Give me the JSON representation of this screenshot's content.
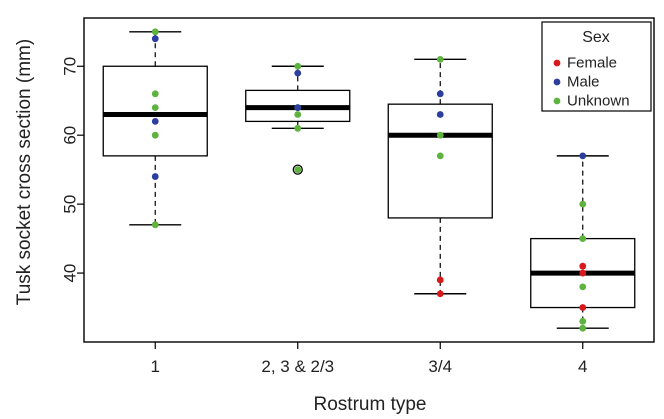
{
  "chart_data": {
    "type": "box",
    "xlabel": "Rostrum type",
    "ylabel": "Tusk socket cross section (mm)",
    "ylim": [
      30,
      77
    ],
    "yticks": [
      40,
      50,
      60,
      70
    ],
    "categories": [
      "1",
      "2, 3 & 2/3",
      "3/4",
      "4"
    ],
    "boxes": [
      {
        "category": "1",
        "whisker_low": 47,
        "q1": 57,
        "median": 63,
        "q3": 70,
        "whisker_high": 75,
        "outliers": []
      },
      {
        "category": "2, 3 & 2/3",
        "whisker_low": 61,
        "q1": 62,
        "median": 64,
        "q3": 66.5,
        "whisker_high": 70,
        "outliers": [
          55
        ]
      },
      {
        "category": "3/4",
        "whisker_low": 37,
        "q1": 48,
        "median": 60,
        "q3": 64.5,
        "whisker_high": 71,
        "outliers": []
      },
      {
        "category": "4",
        "whisker_low": 32,
        "q1": 35,
        "median": 40,
        "q3": 45,
        "whisker_high": 57,
        "outliers": []
      }
    ],
    "points": [
      {
        "category": "1",
        "y": 75,
        "sex": "Unknown"
      },
      {
        "category": "1",
        "y": 74,
        "sex": "Male"
      },
      {
        "category": "1",
        "y": 66,
        "sex": "Unknown"
      },
      {
        "category": "1",
        "y": 64,
        "sex": "Unknown"
      },
      {
        "category": "1",
        "y": 62,
        "sex": "Male"
      },
      {
        "category": "1",
        "y": 60,
        "sex": "Unknown"
      },
      {
        "category": "1",
        "y": 54,
        "sex": "Male"
      },
      {
        "category": "1",
        "y": 47,
        "sex": "Unknown"
      },
      {
        "category": "2, 3 & 2/3",
        "y": 70,
        "sex": "Unknown"
      },
      {
        "category": "2, 3 & 2/3",
        "y": 69,
        "sex": "Male"
      },
      {
        "category": "2, 3 & 2/3",
        "y": 64,
        "sex": "Male"
      },
      {
        "category": "2, 3 & 2/3",
        "y": 64,
        "sex": "Unknown"
      },
      {
        "category": "2, 3 & 2/3",
        "y": 64,
        "sex": "Male"
      },
      {
        "category": "2, 3 & 2/3",
        "y": 63,
        "sex": "Unknown"
      },
      {
        "category": "2, 3 & 2/3",
        "y": 61,
        "sex": "Unknown"
      },
      {
        "category": "2, 3 & 2/3",
        "y": 55,
        "sex": "Unknown"
      },
      {
        "category": "3/4",
        "y": 71,
        "sex": "Unknown"
      },
      {
        "category": "3/4",
        "y": 66,
        "sex": "Male"
      },
      {
        "category": "3/4",
        "y": 63,
        "sex": "Male"
      },
      {
        "category": "3/4",
        "y": 60,
        "sex": "Unknown"
      },
      {
        "category": "3/4",
        "y": 57,
        "sex": "Unknown"
      },
      {
        "category": "3/4",
        "y": 39,
        "sex": "Female"
      },
      {
        "category": "3/4",
        "y": 37,
        "sex": "Female"
      },
      {
        "category": "4",
        "y": 57,
        "sex": "Male"
      },
      {
        "category": "4",
        "y": 50,
        "sex": "Unknown"
      },
      {
        "category": "4",
        "y": 45,
        "sex": "Unknown"
      },
      {
        "category": "4",
        "y": 41,
        "sex": "Female"
      },
      {
        "category": "4",
        "y": 40,
        "sex": "Female"
      },
      {
        "category": "4",
        "y": 38,
        "sex": "Unknown"
      },
      {
        "category": "4",
        "y": 35,
        "sex": "Female"
      },
      {
        "category": "4",
        "y": 33,
        "sex": "Unknown"
      },
      {
        "category": "4",
        "y": 32,
        "sex": "Unknown"
      }
    ],
    "legend": {
      "title": "Sex",
      "placement": "top-right",
      "entries": [
        {
          "label": "Female",
          "color": "#d7191c"
        },
        {
          "label": "Male",
          "color": "#2c3e9e"
        },
        {
          "label": "Unknown",
          "color": "#5db33d"
        }
      ]
    },
    "grid": false
  }
}
